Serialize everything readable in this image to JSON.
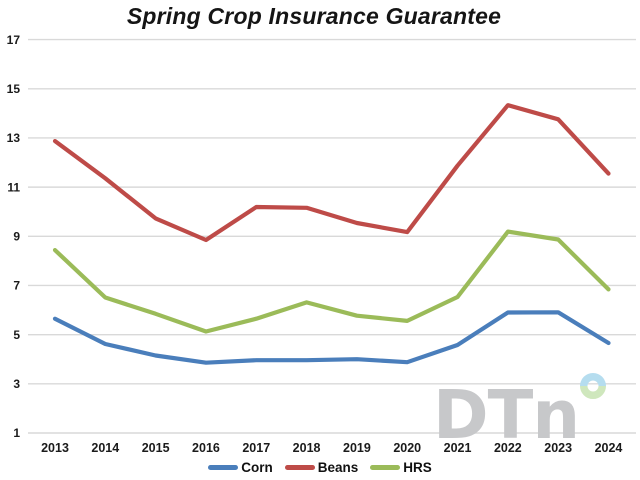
{
  "title": "Spring Crop Insurance Guarantee",
  "chart_data": {
    "type": "line",
    "title": "Spring Crop Insurance Guarantee",
    "categories": [
      "2013",
      "2014",
      "2015",
      "2016",
      "2017",
      "2018",
      "2019",
      "2020",
      "2021",
      "2022",
      "2023",
      "2024"
    ],
    "series": [
      {
        "name": "Corn",
        "color": "#4A7EBB",
        "values": [
          5.65,
          4.62,
          4.15,
          3.86,
          3.96,
          3.96,
          4.0,
          3.88,
          4.58,
          5.9,
          5.91,
          4.66
        ]
      },
      {
        "name": "Beans",
        "color": "#BE4B48",
        "values": [
          12.87,
          11.36,
          9.73,
          8.85,
          10.19,
          10.16,
          9.54,
          9.17,
          11.87,
          14.33,
          13.76,
          11.55
        ]
      },
      {
        "name": "HRS",
        "color": "#9BBB59",
        "values": [
          8.44,
          6.51,
          5.85,
          5.13,
          5.65,
          6.31,
          5.77,
          5.56,
          6.53,
          9.19,
          8.87,
          6.84
        ]
      }
    ],
    "ylim": [
      1,
      17
    ],
    "yticks": [
      17,
      15,
      13,
      11,
      9,
      7,
      5,
      3,
      1
    ],
    "grid": true,
    "legend_position": "bottom",
    "xlabel": "",
    "ylabel": ""
  },
  "watermark": {
    "text": "DTn",
    "letter_color": "#C7C8CA",
    "ring_top_color": "#B5DDEF",
    "ring_bottom_color": "#CFE7BD"
  },
  "colors": {
    "background": "#FFFFFF",
    "grid": "#D9D9D9",
    "axis_text": "#1B1B1B",
    "title_text": "#151515"
  }
}
